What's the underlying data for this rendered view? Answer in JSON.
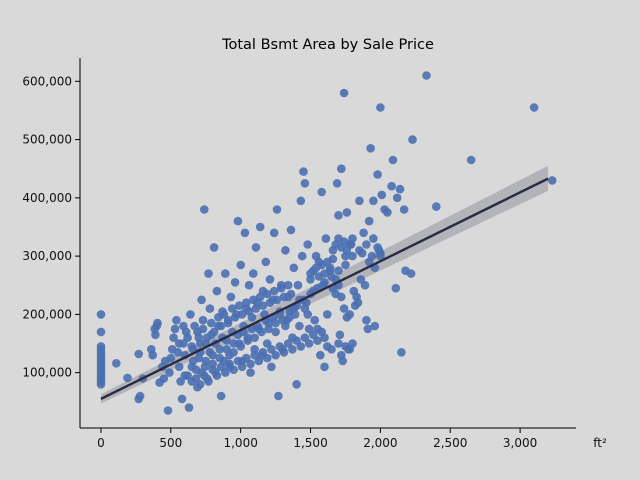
{
  "chart_data": {
    "type": "scatter",
    "title": "Total Bsmt Area by Sale Price",
    "xlabel": "ft²",
    "ylabel": "",
    "xlim": [
      -150,
      3400
    ],
    "ylim": [
      5000,
      640000
    ],
    "x_ticks": [
      0,
      500,
      1000,
      1500,
      2000,
      2500,
      3000
    ],
    "x_tick_labels": [
      "0",
      "500",
      "1,000",
      "1,500",
      "2,000",
      "2,500",
      "3,000"
    ],
    "y_ticks": [
      100000,
      200000,
      300000,
      400000,
      500000,
      600000
    ],
    "y_tick_labels": [
      "100,000",
      "200,000",
      "300,000",
      "400,000",
      "500,000",
      "600,000"
    ],
    "grid": false,
    "point_color": "#4a6fb0",
    "regression": {
      "x": [
        0,
        3200
      ],
      "y": [
        55000,
        433000
      ],
      "ci_lower": [
        47000,
        412000
      ],
      "ci_upper": [
        63000,
        455000
      ],
      "color": "#2a2a40",
      "band_color": "#a9a9b1"
    },
    "points": [
      [
        0,
        200000
      ],
      [
        0,
        170000
      ],
      [
        0,
        145000
      ],
      [
        0,
        140000
      ],
      [
        0,
        135000
      ],
      [
        0,
        130000
      ],
      [
        0,
        125000
      ],
      [
        0,
        120000
      ],
      [
        0,
        115000
      ],
      [
        0,
        110000
      ],
      [
        0,
        105000
      ],
      [
        0,
        100000
      ],
      [
        0,
        95000
      ],
      [
        0,
        90000
      ],
      [
        0,
        85000
      ],
      [
        0,
        80000
      ],
      [
        110,
        116000
      ],
      [
        190,
        91000
      ],
      [
        270,
        55000
      ],
      [
        280,
        60000
      ],
      [
        270,
        132000
      ],
      [
        300,
        90000
      ],
      [
        360,
        140000
      ],
      [
        370,
        130000
      ],
      [
        385,
        175000
      ],
      [
        390,
        165000
      ],
      [
        400,
        180000
      ],
      [
        405,
        185000
      ],
      [
        420,
        83000
      ],
      [
        440,
        110000
      ],
      [
        450,
        90000
      ],
      [
        460,
        120000
      ],
      [
        480,
        35000
      ],
      [
        490,
        100000
      ],
      [
        500,
        125000
      ],
      [
        510,
        140000
      ],
      [
        520,
        160000
      ],
      [
        530,
        175000
      ],
      [
        540,
        190000
      ],
      [
        550,
        135000
      ],
      [
        560,
        110000
      ],
      [
        570,
        85000
      ],
      [
        580,
        55000
      ],
      [
        590,
        150000
      ],
      [
        600,
        130000
      ],
      [
        610,
        170000
      ],
      [
        620,
        95000
      ],
      [
        630,
        40000
      ],
      [
        640,
        200000
      ],
      [
        650,
        145000
      ],
      [
        660,
        120000
      ],
      [
        670,
        180000
      ],
      [
        680,
        105000
      ],
      [
        690,
        75000
      ],
      [
        700,
        160000
      ],
      [
        710,
        135000
      ],
      [
        720,
        225000
      ],
      [
        730,
        190000
      ],
      [
        740,
        380000
      ],
      [
        745,
        110000
      ],
      [
        750,
        150000
      ],
      [
        760,
        90000
      ],
      [
        770,
        270000
      ],
      [
        780,
        210000
      ],
      [
        790,
        165000
      ],
      [
        800,
        130000
      ],
      [
        810,
        315000
      ],
      [
        820,
        100000
      ],
      [
        830,
        240000
      ],
      [
        840,
        180000
      ],
      [
        850,
        140000
      ],
      [
        860,
        60000
      ],
      [
        870,
        205000
      ],
      [
        880,
        120000
      ],
      [
        890,
        270000
      ],
      [
        900,
        155000
      ],
      [
        910,
        190000
      ],
      [
        920,
        110000
      ],
      [
        930,
        230000
      ],
      [
        940,
        170000
      ],
      [
        950,
        135000
      ],
      [
        960,
        255000
      ],
      [
        970,
        200000
      ],
      [
        980,
        360000
      ],
      [
        990,
        150000
      ],
      [
        1000,
        285000
      ],
      [
        1010,
        120000
      ],
      [
        1020,
        180000
      ],
      [
        1030,
        340000
      ],
      [
        1040,
        210000
      ],
      [
        1050,
        160000
      ],
      [
        1060,
        250000
      ],
      [
        1070,
        100000
      ],
      [
        1080,
        195000
      ],
      [
        1090,
        270000
      ],
      [
        1100,
        140000
      ],
      [
        1110,
        315000
      ],
      [
        1120,
        220000
      ],
      [
        1130,
        175000
      ],
      [
        1140,
        350000
      ],
      [
        1150,
        130000
      ],
      [
        1160,
        240000
      ],
      [
        1170,
        200000
      ],
      [
        1180,
        290000
      ],
      [
        1190,
        150000
      ],
      [
        1200,
        185000
      ],
      [
        1210,
        260000
      ],
      [
        1220,
        110000
      ],
      [
        1230,
        225000
      ],
      [
        1240,
        340000
      ],
      [
        1250,
        170000
      ],
      [
        1260,
        380000
      ],
      [
        1270,
        60000
      ],
      [
        1280,
        205000
      ],
      [
        1290,
        250000
      ],
      [
        1300,
        140000
      ],
      [
        1320,
        310000
      ],
      [
        1330,
        190000
      ],
      [
        1340,
        230000
      ],
      [
        1360,
        345000
      ],
      [
        1370,
        160000
      ],
      [
        1380,
        280000
      ],
      [
        1390,
        200000
      ],
      [
        1400,
        80000
      ],
      [
        1410,
        250000
      ],
      [
        1420,
        180000
      ],
      [
        1430,
        395000
      ],
      [
        1440,
        300000
      ],
      [
        1450,
        445000
      ],
      [
        1460,
        425000
      ],
      [
        1470,
        220000
      ],
      [
        1480,
        320000
      ],
      [
        1490,
        175000
      ],
      [
        1500,
        270000
      ],
      [
        1520,
        240000
      ],
      [
        1540,
        300000
      ],
      [
        1560,
        290000
      ],
      [
        1570,
        130000
      ],
      [
        1580,
        410000
      ],
      [
        1590,
        250000
      ],
      [
        1600,
        110000
      ],
      [
        1610,
        330000
      ],
      [
        1620,
        200000
      ],
      [
        1640,
        280000
      ],
      [
        1660,
        310000
      ],
      [
        1680,
        235000
      ],
      [
        1690,
        425000
      ],
      [
        1700,
        370000
      ],
      [
        1710,
        165000
      ],
      [
        1720,
        450000
      ],
      [
        1730,
        120000
      ],
      [
        1740,
        580000
      ],
      [
        1750,
        300000
      ],
      [
        1760,
        375000
      ],
      [
        1770,
        140000
      ],
      [
        1790,
        320000
      ],
      [
        1810,
        240000
      ],
      [
        1830,
        230000
      ],
      [
        1850,
        395000
      ],
      [
        1870,
        305000
      ],
      [
        1880,
        340000
      ],
      [
        1900,
        190000
      ],
      [
        1910,
        175000
      ],
      [
        1920,
        360000
      ],
      [
        1930,
        485000
      ],
      [
        1950,
        395000
      ],
      [
        1960,
        180000
      ],
      [
        1980,
        440000
      ],
      [
        1990,
        310000
      ],
      [
        2000,
        555000
      ],
      [
        2010,
        405000
      ],
      [
        2030,
        380000
      ],
      [
        2050,
        375000
      ],
      [
        2080,
        420000
      ],
      [
        2090,
        465000
      ],
      [
        2110,
        245000
      ],
      [
        2120,
        400000
      ],
      [
        2140,
        415000
      ],
      [
        2150,
        135000
      ],
      [
        2170,
        380000
      ],
      [
        2180,
        275000
      ],
      [
        2220,
        270000
      ],
      [
        2230,
        500000
      ],
      [
        2330,
        610000
      ],
      [
        2400,
        385000
      ],
      [
        2650,
        465000
      ],
      [
        3100,
        555000
      ],
      [
        3230,
        430000
      ],
      [
        600,
        95000
      ],
      [
        650,
        110000
      ],
      [
        700,
        125000
      ],
      [
        720,
        100000
      ],
      [
        750,
        120000
      ],
      [
        780,
        135000
      ],
      [
        800,
        115000
      ],
      [
        820,
        150000
      ],
      [
        850,
        125000
      ],
      [
        870,
        160000
      ],
      [
        900,
        140000
      ],
      [
        920,
        130000
      ],
      [
        950,
        150000
      ],
      [
        980,
        165000
      ],
      [
        1000,
        145000
      ],
      [
        1020,
        170000
      ],
      [
        1050,
        155000
      ],
      [
        1080,
        175000
      ],
      [
        1100,
        160000
      ],
      [
        1120,
        180000
      ],
      [
        1150,
        170000
      ],
      [
        1180,
        190000
      ],
      [
        1200,
        175000
      ],
      [
        1230,
        195000
      ],
      [
        1250,
        185000
      ],
      [
        1280,
        200000
      ],
      [
        1300,
        190000
      ],
      [
        1350,
        205000
      ],
      [
        1400,
        215000
      ],
      [
        1450,
        225000
      ],
      [
        1500,
        235000
      ],
      [
        1550,
        245000
      ],
      [
        1600,
        255000
      ],
      [
        1650,
        265000
      ],
      [
        1700,
        275000
      ],
      [
        1750,
        285000
      ],
      [
        1800,
        300000
      ],
      [
        1850,
        310000
      ],
      [
        1900,
        320000
      ],
      [
        1950,
        330000
      ],
      [
        2000,
        300000
      ],
      [
        560,
        150000
      ],
      [
        590,
        180000
      ],
      [
        620,
        160000
      ],
      [
        660,
        140000
      ],
      [
        690,
        170000
      ],
      [
        710,
        150000
      ],
      [
        730,
        175000
      ],
      [
        760,
        160000
      ],
      [
        790,
        185000
      ],
      [
        810,
        170000
      ],
      [
        840,
        195000
      ],
      [
        860,
        180000
      ],
      [
        880,
        200000
      ],
      [
        910,
        185000
      ],
      [
        940,
        210000
      ],
      [
        960,
        195000
      ],
      [
        990,
        215000
      ],
      [
        1010,
        200000
      ],
      [
        1040,
        220000
      ],
      [
        1060,
        205000
      ],
      [
        1090,
        225000
      ],
      [
        1110,
        210000
      ],
      [
        1140,
        230000
      ],
      [
        1160,
        215000
      ],
      [
        1190,
        235000
      ],
      [
        1210,
        220000
      ],
      [
        1240,
        240000
      ],
      [
        1260,
        225000
      ],
      [
        1290,
        245000
      ],
      [
        1310,
        230000
      ],
      [
        1340,
        250000
      ],
      [
        1360,
        235000
      ],
      [
        650,
        85000
      ],
      [
        680,
        90000
      ],
      [
        710,
        80000
      ],
      [
        740,
        95000
      ],
      [
        770,
        85000
      ],
      [
        800,
        105000
      ],
      [
        830,
        95000
      ],
      [
        860,
        110000
      ],
      [
        890,
        100000
      ],
      [
        920,
        115000
      ],
      [
        950,
        105000
      ],
      [
        980,
        120000
      ],
      [
        1010,
        110000
      ],
      [
        1040,
        125000
      ],
      [
        1070,
        115000
      ],
      [
        1100,
        130000
      ],
      [
        1130,
        120000
      ],
      [
        1160,
        135000
      ],
      [
        1190,
        125000
      ],
      [
        1220,
        140000
      ],
      [
        1250,
        130000
      ],
      [
        1280,
        145000
      ],
      [
        1310,
        135000
      ],
      [
        1340,
        150000
      ],
      [
        1370,
        140000
      ],
      [
        1400,
        155000
      ],
      [
        1430,
        145000
      ],
      [
        1460,
        160000
      ],
      [
        1490,
        150000
      ],
      [
        1520,
        165000
      ],
      [
        1550,
        155000
      ],
      [
        1580,
        170000
      ],
      [
        1500,
        260000
      ],
      [
        1520,
        275000
      ],
      [
        1540,
        280000
      ],
      [
        1560,
        265000
      ],
      [
        1580,
        285000
      ],
      [
        1600,
        270000
      ],
      [
        1620,
        290000
      ],
      [
        1640,
        275000
      ],
      [
        1660,
        295000
      ],
      [
        1680,
        320000
      ],
      [
        1700,
        330000
      ],
      [
        1720,
        315000
      ],
      [
        1740,
        325000
      ],
      [
        1760,
        310000
      ],
      [
        1780,
        320000
      ],
      [
        1800,
        330000
      ],
      [
        1650,
        140000
      ],
      [
        1700,
        150000
      ],
      [
        1720,
        130000
      ],
      [
        1750,
        145000
      ],
      [
        1780,
        140000
      ],
      [
        1800,
        150000
      ],
      [
        1600,
        160000
      ],
      [
        1620,
        145000
      ],
      [
        1550,
        175000
      ],
      [
        1530,
        190000
      ],
      [
        1480,
        200000
      ],
      [
        1460,
        210000
      ],
      [
        1420,
        225000
      ],
      [
        1380,
        210000
      ],
      [
        1350,
        195000
      ],
      [
        1320,
        180000
      ],
      [
        1780,
        200000
      ],
      [
        1820,
        215000
      ],
      [
        1840,
        220000
      ],
      [
        1860,
        260000
      ],
      [
        1890,
        250000
      ],
      [
        1920,
        290000
      ],
      [
        1940,
        300000
      ],
      [
        1960,
        280000
      ],
      [
        1980,
        315000
      ],
      [
        2000,
        305000
      ],
      [
        1760,
        195000
      ],
      [
        1740,
        210000
      ],
      [
        1720,
        230000
      ],
      [
        1700,
        250000
      ],
      [
        1680,
        260000
      ],
      [
        1660,
        245000
      ]
    ]
  }
}
